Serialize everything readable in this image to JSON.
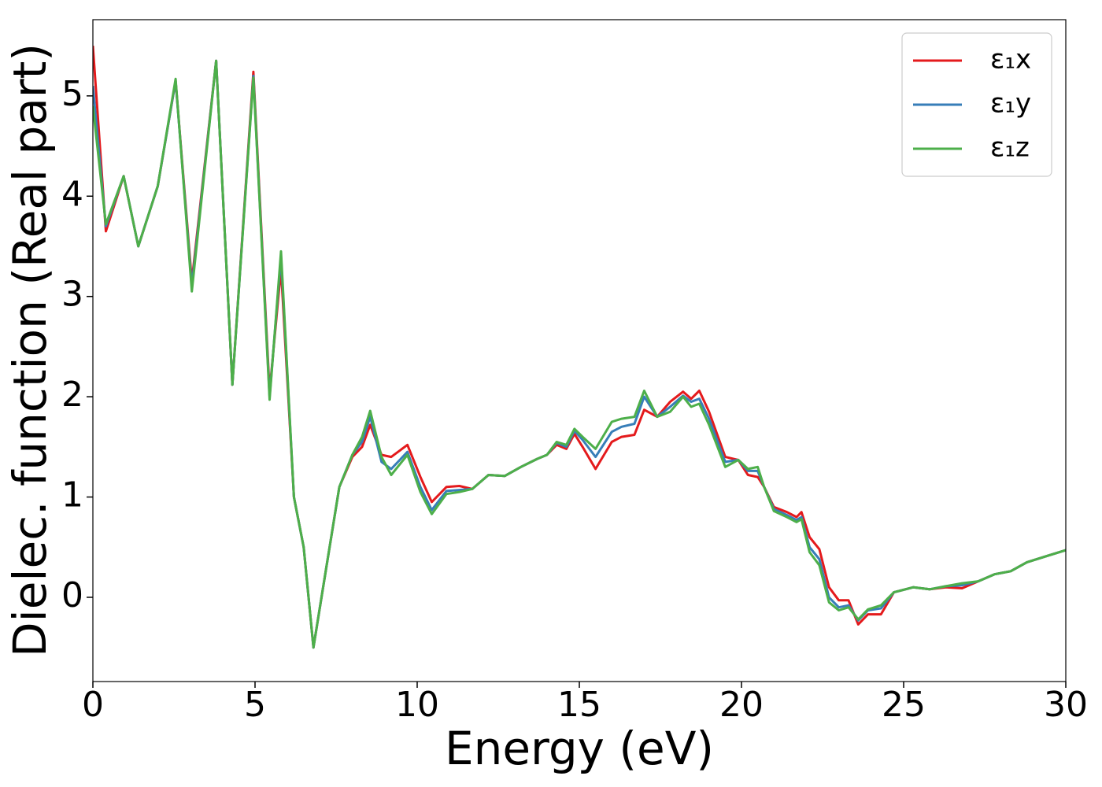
{
  "chart_data": {
    "type": "line",
    "xlabel": "Energy (eV)",
    "ylabel": "Dielec. function (Real part)",
    "xlim": [
      0,
      30
    ],
    "ylim": [
      -0.84,
      5.76
    ],
    "xticks": [
      0,
      5,
      10,
      15,
      20,
      25,
      30
    ],
    "yticks": [
      0,
      1,
      2,
      3,
      4,
      5
    ],
    "legend": "upper right",
    "x": [
      0,
      0.4,
      0.95,
      1.4,
      2.0,
      2.55,
      3.05,
      3.8,
      4.3,
      4.95,
      5.45,
      5.8,
      6.2,
      6.5,
      6.8,
      7.2,
      7.6,
      8.0,
      8.3,
      8.55,
      8.9,
      9.2,
      9.7,
      10.1,
      10.45,
      10.9,
      11.3,
      11.7,
      12.2,
      12.7,
      13.2,
      13.7,
      14.0,
      14.3,
      14.6,
      14.85,
      15.1,
      15.5,
      16.0,
      16.3,
      16.7,
      17.0,
      17.4,
      17.8,
      18.2,
      18.45,
      18.7,
      19.0,
      19.5,
      19.9,
      20.2,
      20.5,
      20.7,
      21.0,
      21.4,
      21.7,
      21.85,
      22.1,
      22.4,
      22.7,
      23.0,
      23.3,
      23.6,
      23.9,
      24.3,
      24.7,
      25.3,
      25.8,
      26.3,
      26.8,
      27.3,
      27.8,
      28.3,
      28.8,
      29.4,
      30
    ],
    "series": [
      {
        "name": "ε₁x",
        "color": "#e41a1c",
        "values": [
          5.5,
          3.65,
          4.2,
          3.5,
          4.1,
          5.15,
          3.15,
          5.35,
          2.12,
          5.24,
          2.05,
          3.28,
          1.0,
          0.5,
          -0.5,
          0.3,
          1.1,
          1.4,
          1.5,
          1.72,
          1.42,
          1.4,
          1.52,
          1.2,
          0.95,
          1.1,
          1.11,
          1.08,
          1.22,
          1.21,
          1.3,
          1.38,
          1.42,
          1.52,
          1.48,
          1.63,
          1.5,
          1.28,
          1.55,
          1.6,
          1.62,
          1.87,
          1.8,
          1.95,
          2.05,
          1.98,
          2.06,
          1.85,
          1.4,
          1.37,
          1.22,
          1.2,
          1.1,
          0.9,
          0.85,
          0.8,
          0.85,
          0.6,
          0.48,
          0.1,
          -0.03,
          -0.03,
          -0.27,
          -0.17,
          -0.17,
          0.05,
          0.1,
          0.08,
          0.1,
          0.09,
          0.16,
          0.23,
          0.26,
          0.35,
          0.41,
          0.47
        ]
      },
      {
        "name": "ε₁y",
        "color": "#377eb8",
        "values": [
          5.1,
          3.7,
          4.2,
          3.5,
          4.1,
          5.15,
          3.1,
          5.35,
          2.12,
          5.2,
          2.0,
          3.4,
          1.0,
          0.5,
          -0.5,
          0.3,
          1.1,
          1.42,
          1.55,
          1.8,
          1.35,
          1.28,
          1.45,
          1.1,
          0.87,
          1.06,
          1.07,
          1.08,
          1.22,
          1.21,
          1.3,
          1.38,
          1.42,
          1.54,
          1.5,
          1.66,
          1.57,
          1.4,
          1.65,
          1.7,
          1.73,
          2.0,
          1.8,
          1.9,
          2.01,
          1.95,
          1.98,
          1.78,
          1.35,
          1.37,
          1.26,
          1.26,
          1.1,
          0.88,
          0.82,
          0.77,
          0.8,
          0.5,
          0.38,
          0.0,
          -0.1,
          -0.08,
          -0.23,
          -0.13,
          -0.11,
          0.05,
          0.1,
          0.08,
          0.11,
          0.12,
          0.16,
          0.23,
          0.26,
          0.35,
          0.41,
          0.47
        ]
      },
      {
        "name": "ε₁z",
        "color": "#4daf4a",
        "values": [
          4.9,
          3.72,
          4.2,
          3.5,
          4.1,
          5.17,
          3.05,
          5.35,
          2.12,
          5.18,
          1.97,
          3.45,
          1.0,
          0.5,
          -0.5,
          0.3,
          1.1,
          1.42,
          1.6,
          1.86,
          1.4,
          1.22,
          1.42,
          1.05,
          0.83,
          1.03,
          1.05,
          1.08,
          1.22,
          1.21,
          1.3,
          1.38,
          1.42,
          1.55,
          1.52,
          1.68,
          1.6,
          1.48,
          1.75,
          1.78,
          1.8,
          2.06,
          1.8,
          1.85,
          2.0,
          1.9,
          1.93,
          1.72,
          1.3,
          1.37,
          1.28,
          1.3,
          1.1,
          0.86,
          0.8,
          0.75,
          0.78,
          0.45,
          0.32,
          -0.05,
          -0.13,
          -0.1,
          -0.22,
          -0.12,
          -0.08,
          0.05,
          0.1,
          0.08,
          0.11,
          0.14,
          0.16,
          0.23,
          0.26,
          0.35,
          0.41,
          0.47
        ]
      }
    ]
  }
}
